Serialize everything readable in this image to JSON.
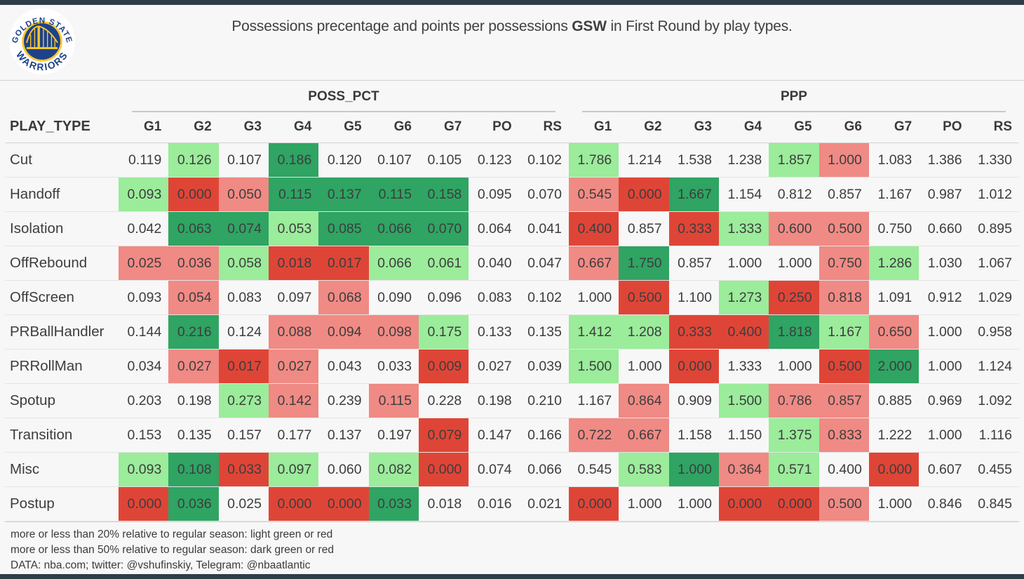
{
  "header": {
    "title_prefix": "Possessions precentage and points per possessions ",
    "title_team": "GSW",
    "title_suffix": " in First Round by play types.",
    "logo": {
      "arc_top": "GOLDEN STATE",
      "arc_bottom": "WARRIORS"
    }
  },
  "chart_data": {
    "type": "table",
    "title": "Possessions precentage and points per possessions GSW in First Round by play types.",
    "row_header": "PLAY_TYPE",
    "column_groups": [
      "POSS_PCT",
      "PPP"
    ],
    "columns": [
      "G1",
      "G2",
      "G3",
      "G4",
      "G5",
      "G6",
      "G7",
      "PO",
      "RS"
    ],
    "color_legend": {
      "light_green": "#9bec9b",
      "dark_green": "#2fa463",
      "light_red": "#f08a84",
      "dark_red": "#df4537",
      "lg_meaning": "more than 20% above regular season",
      "dg_meaning": "more than 50% above regular season",
      "lr_meaning": "more than 20% below regular season",
      "dr_meaning": "more than 50% below regular season"
    },
    "rows": [
      {
        "play_type": "Cut",
        "poss_pct": [
          [
            "0.119",
            ""
          ],
          [
            "0.126",
            "lg"
          ],
          [
            "0.107",
            ""
          ],
          [
            "0.186",
            "dg"
          ],
          [
            "0.120",
            ""
          ],
          [
            "0.107",
            ""
          ],
          [
            "0.105",
            ""
          ],
          [
            "0.123",
            ""
          ],
          [
            "0.102",
            ""
          ]
        ],
        "ppp": [
          [
            "1.786",
            "lg"
          ],
          [
            "1.214",
            ""
          ],
          [
            "1.538",
            ""
          ],
          [
            "1.238",
            ""
          ],
          [
            "1.857",
            "lg"
          ],
          [
            "1.000",
            "lr"
          ],
          [
            "1.083",
            ""
          ],
          [
            "1.386",
            ""
          ],
          [
            "1.330",
            ""
          ]
        ]
      },
      {
        "play_type": "Handoff",
        "poss_pct": [
          [
            "0.093",
            "lg"
          ],
          [
            "0.000",
            "dr"
          ],
          [
            "0.050",
            "lr"
          ],
          [
            "0.115",
            "dg"
          ],
          [
            "0.137",
            "dg"
          ],
          [
            "0.115",
            "dg"
          ],
          [
            "0.158",
            "dg"
          ],
          [
            "0.095",
            ""
          ],
          [
            "0.070",
            ""
          ]
        ],
        "ppp": [
          [
            "0.545",
            "lr"
          ],
          [
            "0.000",
            "dr"
          ],
          [
            "1.667",
            "dg"
          ],
          [
            "1.154",
            ""
          ],
          [
            "0.812",
            ""
          ],
          [
            "0.857",
            ""
          ],
          [
            "1.167",
            ""
          ],
          [
            "0.987",
            ""
          ],
          [
            "1.012",
            ""
          ]
        ]
      },
      {
        "play_type": "Isolation",
        "poss_pct": [
          [
            "0.042",
            ""
          ],
          [
            "0.063",
            "dg"
          ],
          [
            "0.074",
            "dg"
          ],
          [
            "0.053",
            "lg"
          ],
          [
            "0.085",
            "dg"
          ],
          [
            "0.066",
            "dg"
          ],
          [
            "0.070",
            "dg"
          ],
          [
            "0.064",
            ""
          ],
          [
            "0.041",
            ""
          ]
        ],
        "ppp": [
          [
            "0.400",
            "dr"
          ],
          [
            "0.857",
            ""
          ],
          [
            "0.333",
            "dr"
          ],
          [
            "1.333",
            "lg"
          ],
          [
            "0.600",
            "lr"
          ],
          [
            "0.500",
            "lr"
          ],
          [
            "0.750",
            ""
          ],
          [
            "0.660",
            ""
          ],
          [
            "0.895",
            ""
          ]
        ]
      },
      {
        "play_type": "OffRebound",
        "poss_pct": [
          [
            "0.025",
            "lr"
          ],
          [
            "0.036",
            "lr"
          ],
          [
            "0.058",
            "lg"
          ],
          [
            "0.018",
            "dr"
          ],
          [
            "0.017",
            "dr"
          ],
          [
            "0.066",
            "lg"
          ],
          [
            "0.061",
            "lg"
          ],
          [
            "0.040",
            ""
          ],
          [
            "0.047",
            ""
          ]
        ],
        "ppp": [
          [
            "0.667",
            "lr"
          ],
          [
            "1.750",
            "dg"
          ],
          [
            "0.857",
            ""
          ],
          [
            "1.000",
            ""
          ],
          [
            "1.000",
            ""
          ],
          [
            "0.750",
            "lr"
          ],
          [
            "1.286",
            "lg"
          ],
          [
            "1.030",
            ""
          ],
          [
            "1.067",
            ""
          ]
        ]
      },
      {
        "play_type": "OffScreen",
        "poss_pct": [
          [
            "0.093",
            ""
          ],
          [
            "0.054",
            "lr"
          ],
          [
            "0.083",
            ""
          ],
          [
            "0.097",
            ""
          ],
          [
            "0.068",
            "lr"
          ],
          [
            "0.090",
            ""
          ],
          [
            "0.096",
            ""
          ],
          [
            "0.083",
            ""
          ],
          [
            "0.102",
            ""
          ]
        ],
        "ppp": [
          [
            "1.000",
            ""
          ],
          [
            "0.500",
            "dr"
          ],
          [
            "1.100",
            ""
          ],
          [
            "1.273",
            "lg"
          ],
          [
            "0.250",
            "dr"
          ],
          [
            "0.818",
            "lr"
          ],
          [
            "1.091",
            ""
          ],
          [
            "0.912",
            ""
          ],
          [
            "1.029",
            ""
          ]
        ]
      },
      {
        "play_type": "PRBallHandler",
        "poss_pct": [
          [
            "0.144",
            ""
          ],
          [
            "0.216",
            "dg"
          ],
          [
            "0.124",
            ""
          ],
          [
            "0.088",
            "lr"
          ],
          [
            "0.094",
            "lr"
          ],
          [
            "0.098",
            "lr"
          ],
          [
            "0.175",
            "lg"
          ],
          [
            "0.133",
            ""
          ],
          [
            "0.135",
            ""
          ]
        ],
        "ppp": [
          [
            "1.412",
            "lg"
          ],
          [
            "1.208",
            "lg"
          ],
          [
            "0.333",
            "dr"
          ],
          [
            "0.400",
            "dr"
          ],
          [
            "1.818",
            "dg"
          ],
          [
            "1.167",
            "lg"
          ],
          [
            "0.650",
            "lr"
          ],
          [
            "1.000",
            ""
          ],
          [
            "0.958",
            ""
          ]
        ]
      },
      {
        "play_type": "PRRollMan",
        "poss_pct": [
          [
            "0.034",
            ""
          ],
          [
            "0.027",
            "lr"
          ],
          [
            "0.017",
            "dr"
          ],
          [
            "0.027",
            "lr"
          ],
          [
            "0.043",
            ""
          ],
          [
            "0.033",
            ""
          ],
          [
            "0.009",
            "dr"
          ],
          [
            "0.027",
            ""
          ],
          [
            "0.039",
            ""
          ]
        ],
        "ppp": [
          [
            "1.500",
            "lg"
          ],
          [
            "1.000",
            ""
          ],
          [
            "0.000",
            "dr"
          ],
          [
            "1.333",
            ""
          ],
          [
            "1.000",
            ""
          ],
          [
            "0.500",
            "dr"
          ],
          [
            "2.000",
            "dg"
          ],
          [
            "1.000",
            ""
          ],
          [
            "1.124",
            ""
          ]
        ]
      },
      {
        "play_type": "Spotup",
        "poss_pct": [
          [
            "0.203",
            ""
          ],
          [
            "0.198",
            ""
          ],
          [
            "0.273",
            "lg"
          ],
          [
            "0.142",
            "lr"
          ],
          [
            "0.239",
            ""
          ],
          [
            "0.115",
            "lr"
          ],
          [
            "0.228",
            ""
          ],
          [
            "0.198",
            ""
          ],
          [
            "0.210",
            ""
          ]
        ],
        "ppp": [
          [
            "1.167",
            ""
          ],
          [
            "0.864",
            "lr"
          ],
          [
            "0.909",
            ""
          ],
          [
            "1.500",
            "lg"
          ],
          [
            "0.786",
            "lr"
          ],
          [
            "0.857",
            "lr"
          ],
          [
            "0.885",
            ""
          ],
          [
            "0.969",
            ""
          ],
          [
            "1.092",
            ""
          ]
        ]
      },
      {
        "play_type": "Transition",
        "poss_pct": [
          [
            "0.153",
            ""
          ],
          [
            "0.135",
            ""
          ],
          [
            "0.157",
            ""
          ],
          [
            "0.177",
            ""
          ],
          [
            "0.137",
            ""
          ],
          [
            "0.197",
            ""
          ],
          [
            "0.079",
            "dr"
          ],
          [
            "0.147",
            ""
          ],
          [
            "0.166",
            ""
          ]
        ],
        "ppp": [
          [
            "0.722",
            "lr"
          ],
          [
            "0.667",
            "lr"
          ],
          [
            "1.158",
            ""
          ],
          [
            "1.150",
            ""
          ],
          [
            "1.375",
            "lg"
          ],
          [
            "0.833",
            "lr"
          ],
          [
            "1.222",
            ""
          ],
          [
            "1.000",
            ""
          ],
          [
            "1.116",
            ""
          ]
        ]
      },
      {
        "play_type": "Misc",
        "poss_pct": [
          [
            "0.093",
            "lg"
          ],
          [
            "0.108",
            "dg"
          ],
          [
            "0.033",
            "dr"
          ],
          [
            "0.097",
            "lg"
          ],
          [
            "0.060",
            ""
          ],
          [
            "0.082",
            "lg"
          ],
          [
            "0.000",
            "dr"
          ],
          [
            "0.074",
            ""
          ],
          [
            "0.066",
            ""
          ]
        ],
        "ppp": [
          [
            "0.545",
            ""
          ],
          [
            "0.583",
            "lg"
          ],
          [
            "1.000",
            "dg"
          ],
          [
            "0.364",
            "lr"
          ],
          [
            "0.571",
            "lg"
          ],
          [
            "0.400",
            ""
          ],
          [
            "0.000",
            "dr"
          ],
          [
            "0.607",
            ""
          ],
          [
            "0.455",
            ""
          ]
        ]
      },
      {
        "play_type": "Postup",
        "poss_pct": [
          [
            "0.000",
            "dr"
          ],
          [
            "0.036",
            "dg"
          ],
          [
            "0.025",
            ""
          ],
          [
            "0.000",
            "dr"
          ],
          [
            "0.000",
            "dr"
          ],
          [
            "0.033",
            "dg"
          ],
          [
            "0.018",
            ""
          ],
          [
            "0.016",
            ""
          ],
          [
            "0.021",
            ""
          ]
        ],
        "ppp": [
          [
            "0.000",
            "dr"
          ],
          [
            "1.000",
            ""
          ],
          [
            "1.000",
            ""
          ],
          [
            "0.000",
            "dr"
          ],
          [
            "0.000",
            "dr"
          ],
          [
            "0.500",
            "lr"
          ],
          [
            "1.000",
            ""
          ],
          [
            "0.846",
            ""
          ],
          [
            "0.845",
            ""
          ]
        ]
      }
    ]
  },
  "footer": {
    "lines": [
      "more or less than 20% relative to regular season: light green or red",
      "more or less than 50% relative to regular season: dark green or red",
      "DATA: nba.com; twitter: @vshufinskiy, Telegram: @nbaatlantic"
    ]
  }
}
